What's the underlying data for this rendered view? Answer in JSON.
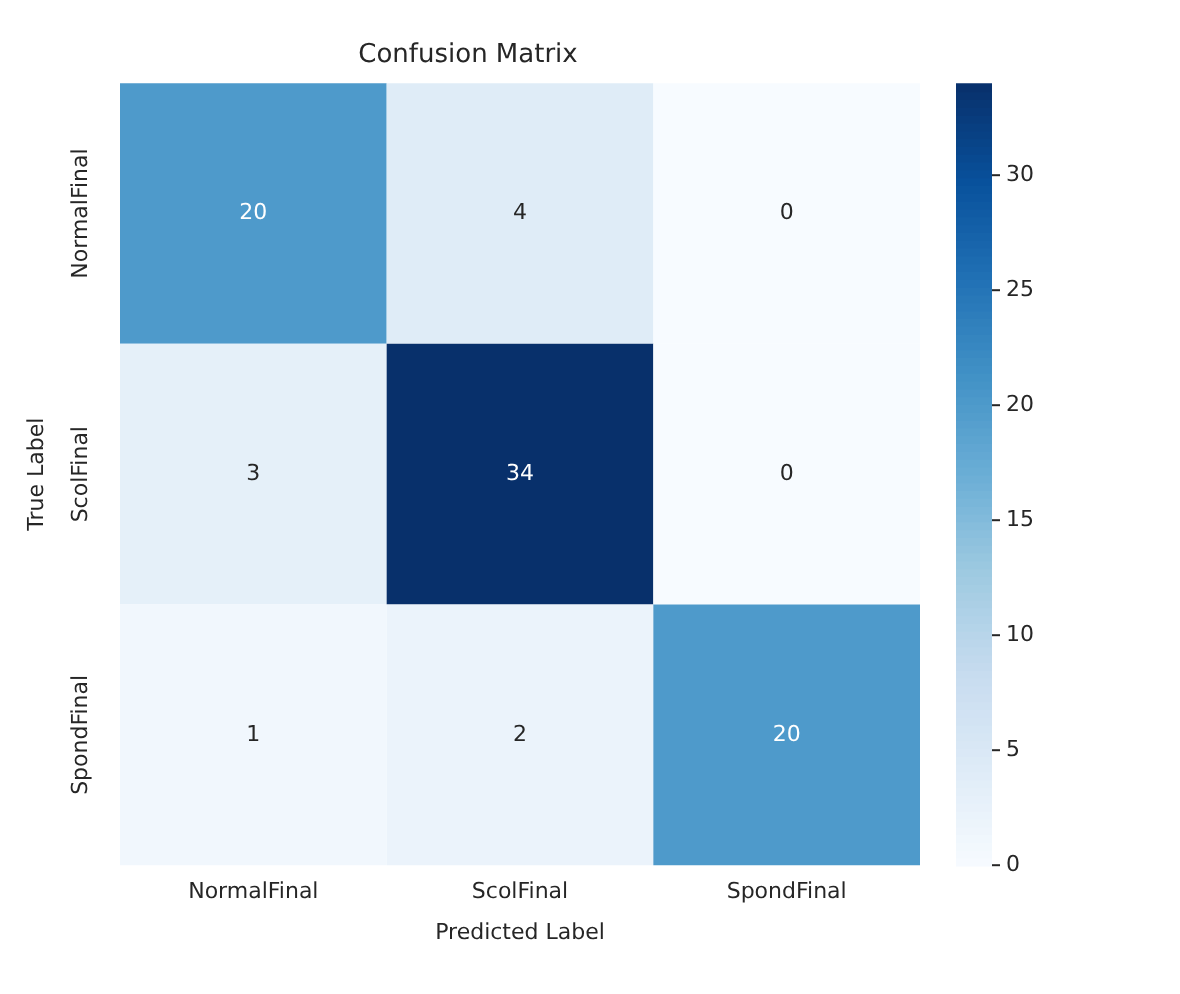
{
  "chart_data": {
    "type": "heatmap",
    "title": "Confusion Matrix",
    "xlabel": "Predicted Label",
    "ylabel": "True Label",
    "categories": [
      "NormalFinal",
      "ScolFinal",
      "SpondFinal"
    ],
    "y_categories": [
      "NormalFinal",
      "ScolFinal",
      "SpondFinal"
    ],
    "cells": [
      [
        20,
        4,
        0
      ],
      [
        3,
        34,
        0
      ],
      [
        1,
        2,
        20
      ]
    ],
    "clim": [
      0,
      34
    ],
    "cticks": [
      0,
      5,
      10,
      15,
      20,
      25,
      30
    ],
    "data_labels": true
  }
}
